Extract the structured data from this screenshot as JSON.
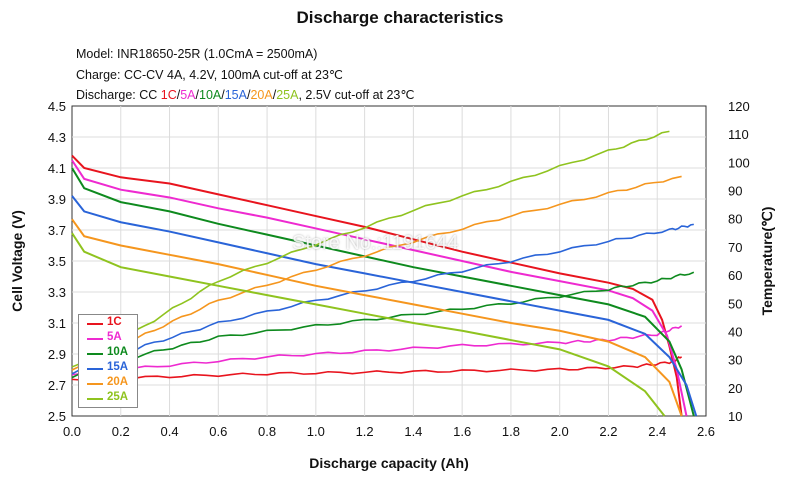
{
  "chart_data": {
    "type": "line",
    "title": "Discharge characteristics",
    "info_lines": [
      "Model: INR18650-25R (1.0CmA = 2500mA)",
      "Charge: CC-CV 4A, 4.2V, 100mA cut-off at 23℃",
      "Discharge: CC 1C/5A/10A/15A/20A/25A, 2.5V cut-off at 23℃"
    ],
    "xlabel": "Discharge capacity (Ah)",
    "ylabel_left": "Cell Voltage (V)",
    "ylabel_right": "Temperature(℃)",
    "xlim": [
      0.0,
      2.6
    ],
    "ylim_left": [
      2.5,
      4.5
    ],
    "ylim_right": [
      10,
      120
    ],
    "x_ticks": [
      "0.0",
      "0.2",
      "0.4",
      "0.6",
      "0.8",
      "1.0",
      "1.2",
      "1.4",
      "1.6",
      "1.8",
      "2.0",
      "2.2",
      "2.4",
      "2.6"
    ],
    "y_ticks_left": [
      "2.5",
      "2.7",
      "2.9",
      "3.1",
      "3.3",
      "3.5",
      "3.7",
      "3.9",
      "4.1",
      "4.3",
      "4.5"
    ],
    "y_ticks_right": [
      "10",
      "20",
      "30",
      "40",
      "50",
      "60",
      "70",
      "80",
      "90",
      "100",
      "110",
      "120"
    ],
    "grid": true,
    "legend_position": "bottom-left",
    "watermark": "Store No.:1191644",
    "series": [
      {
        "name": "1C",
        "color": "#e8141e",
        "voltage": [
          [
            0.0,
            4.18
          ],
          [
            0.05,
            4.1
          ],
          [
            0.2,
            4.04
          ],
          [
            0.4,
            4.0
          ],
          [
            0.6,
            3.93
          ],
          [
            0.8,
            3.86
          ],
          [
            1.0,
            3.79
          ],
          [
            1.2,
            3.72
          ],
          [
            1.4,
            3.64
          ],
          [
            1.6,
            3.56
          ],
          [
            1.8,
            3.49
          ],
          [
            2.0,
            3.42
          ],
          [
            2.2,
            3.36
          ],
          [
            2.3,
            3.32
          ],
          [
            2.38,
            3.25
          ],
          [
            2.42,
            3.12
          ],
          [
            2.45,
            2.95
          ],
          [
            2.48,
            2.75
          ],
          [
            2.5,
            2.5
          ]
        ],
        "temperature": [
          [
            0.0,
            23
          ],
          [
            0.4,
            24
          ],
          [
            0.8,
            25
          ],
          [
            1.2,
            25.5
          ],
          [
            1.6,
            26
          ],
          [
            2.0,
            26.5
          ],
          [
            2.3,
            27.5
          ],
          [
            2.45,
            29
          ],
          [
            2.5,
            31
          ]
        ]
      },
      {
        "name": "5A",
        "color": "#ee2ad0",
        "voltage": [
          [
            0.0,
            4.15
          ],
          [
            0.05,
            4.03
          ],
          [
            0.2,
            3.96
          ],
          [
            0.4,
            3.91
          ],
          [
            0.6,
            3.84
          ],
          [
            0.8,
            3.78
          ],
          [
            1.0,
            3.71
          ],
          [
            1.2,
            3.64
          ],
          [
            1.4,
            3.57
          ],
          [
            1.6,
            3.5
          ],
          [
            1.8,
            3.43
          ],
          [
            2.0,
            3.37
          ],
          [
            2.2,
            3.31
          ],
          [
            2.3,
            3.26
          ],
          [
            2.38,
            3.18
          ],
          [
            2.44,
            3.02
          ],
          [
            2.48,
            2.8
          ],
          [
            2.52,
            2.5
          ]
        ],
        "temperature": [
          [
            0.0,
            25
          ],
          [
            0.4,
            28
          ],
          [
            0.8,
            31
          ],
          [
            1.2,
            33
          ],
          [
            1.6,
            35
          ],
          [
            2.0,
            36
          ],
          [
            2.2,
            37
          ],
          [
            2.4,
            39
          ],
          [
            2.5,
            42
          ]
        ]
      },
      {
        "name": "10A",
        "color": "#0e8a1e",
        "voltage": [
          [
            0.0,
            4.1
          ],
          [
            0.05,
            3.97
          ],
          [
            0.2,
            3.88
          ],
          [
            0.4,
            3.82
          ],
          [
            0.6,
            3.74
          ],
          [
            0.8,
            3.67
          ],
          [
            1.0,
            3.6
          ],
          [
            1.2,
            3.53
          ],
          [
            1.4,
            3.46
          ],
          [
            1.6,
            3.4
          ],
          [
            1.8,
            3.34
          ],
          [
            2.0,
            3.28
          ],
          [
            2.2,
            3.22
          ],
          [
            2.35,
            3.14
          ],
          [
            2.45,
            2.98
          ],
          [
            2.5,
            2.8
          ],
          [
            2.55,
            2.5
          ]
        ],
        "temperature": [
          [
            0.0,
            24
          ],
          [
            0.3,
            32
          ],
          [
            0.6,
            38
          ],
          [
            1.0,
            42
          ],
          [
            1.4,
            46
          ],
          [
            1.8,
            50
          ],
          [
            2.2,
            55
          ],
          [
            2.4,
            58
          ],
          [
            2.55,
            61
          ]
        ]
      },
      {
        "name": "15A",
        "color": "#2a64d8",
        "voltage": [
          [
            0.0,
            3.92
          ],
          [
            0.05,
            3.82
          ],
          [
            0.2,
            3.75
          ],
          [
            0.4,
            3.69
          ],
          [
            0.6,
            3.62
          ],
          [
            0.8,
            3.55
          ],
          [
            1.0,
            3.48
          ],
          [
            1.2,
            3.42
          ],
          [
            1.4,
            3.36
          ],
          [
            1.6,
            3.3
          ],
          [
            1.8,
            3.24
          ],
          [
            2.0,
            3.18
          ],
          [
            2.2,
            3.12
          ],
          [
            2.35,
            3.03
          ],
          [
            2.45,
            2.88
          ],
          [
            2.52,
            2.7
          ],
          [
            2.56,
            2.5
          ]
        ],
        "temperature": [
          [
            0.0,
            25
          ],
          [
            0.3,
            35
          ],
          [
            0.6,
            43
          ],
          [
            1.0,
            51
          ],
          [
            1.4,
            58
          ],
          [
            1.8,
            65
          ],
          [
            2.2,
            72
          ],
          [
            2.45,
            76
          ],
          [
            2.55,
            78
          ]
        ]
      },
      {
        "name": "20A",
        "color": "#f5961e",
        "voltage": [
          [
            0.0,
            3.77
          ],
          [
            0.05,
            3.66
          ],
          [
            0.2,
            3.6
          ],
          [
            0.4,
            3.54
          ],
          [
            0.6,
            3.48
          ],
          [
            0.8,
            3.41
          ],
          [
            1.0,
            3.34
          ],
          [
            1.2,
            3.28
          ],
          [
            1.4,
            3.22
          ],
          [
            1.6,
            3.16
          ],
          [
            1.8,
            3.1
          ],
          [
            2.0,
            3.05
          ],
          [
            2.2,
            2.98
          ],
          [
            2.35,
            2.88
          ],
          [
            2.45,
            2.72
          ],
          [
            2.5,
            2.5
          ]
        ],
        "temperature": [
          [
            0.0,
            26
          ],
          [
            0.3,
            39
          ],
          [
            0.6,
            51
          ],
          [
            1.0,
            62
          ],
          [
            1.4,
            72
          ],
          [
            1.8,
            81
          ],
          [
            2.2,
            89
          ],
          [
            2.5,
            95
          ]
        ]
      },
      {
        "name": "25A",
        "color": "#8fc31f",
        "voltage": [
          [
            0.0,
            3.68
          ],
          [
            0.05,
            3.56
          ],
          [
            0.2,
            3.46
          ],
          [
            0.4,
            3.4
          ],
          [
            0.6,
            3.34
          ],
          [
            0.8,
            3.28
          ],
          [
            1.0,
            3.22
          ],
          [
            1.2,
            3.16
          ],
          [
            1.4,
            3.1
          ],
          [
            1.6,
            3.05
          ],
          [
            1.8,
            2.99
          ],
          [
            2.0,
            2.93
          ],
          [
            2.2,
            2.82
          ],
          [
            2.35,
            2.66
          ],
          [
            2.43,
            2.5
          ]
        ],
        "temperature": [
          [
            0.0,
            27
          ],
          [
            0.3,
            42
          ],
          [
            0.6,
            58
          ],
          [
            1.0,
            71
          ],
          [
            1.4,
            83
          ],
          [
            1.8,
            93
          ],
          [
            2.2,
            104
          ],
          [
            2.45,
            111
          ]
        ]
      }
    ]
  }
}
